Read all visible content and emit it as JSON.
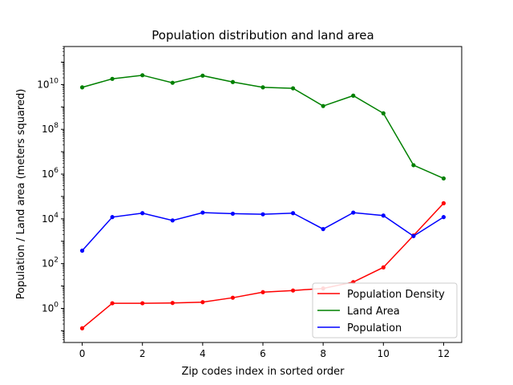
{
  "chart_data": {
    "type": "line",
    "title": "Population distribution and land area",
    "xlabel": "Zip codes index in sorted order",
    "ylabel": "Population / Land area (meters squared)",
    "x": [
      0,
      1,
      2,
      3,
      4,
      5,
      6,
      7,
      8,
      9,
      10,
      11,
      12
    ],
    "xlim": [
      -0.6,
      12.6
    ],
    "xticks": [
      0,
      2,
      4,
      6,
      8,
      10,
      12
    ],
    "yscale": "log",
    "ylim": [
      0.03,
      500000000000
    ],
    "yticks": [
      {
        "value": 1,
        "base": "10",
        "exp": "0"
      },
      {
        "value": 100,
        "base": "10",
        "exp": "2"
      },
      {
        "value": 10000,
        "base": "10",
        "exp": "4"
      },
      {
        "value": 1000000,
        "base": "10",
        "exp": "6"
      },
      {
        "value": 100000000,
        "base": "10",
        "exp": "8"
      },
      {
        "value": 10000000000,
        "base": "10",
        "exp": "10"
      }
    ],
    "grid": false,
    "legend_position": "lower-right",
    "series": [
      {
        "name": "Population Density",
        "color": "#ff0000",
        "values": [
          0.13,
          1.7,
          1.7,
          1.75,
          1.9,
          3.0,
          5.3,
          6.3,
          7.8,
          15,
          68,
          1800,
          50000
        ]
      },
      {
        "name": "Land Area",
        "color": "#008000",
        "values": [
          7500000000,
          18000000000,
          26000000000,
          12000000000,
          25000000000,
          13000000000,
          7500000000,
          6800000000,
          1100000000,
          3200000000,
          520000000,
          2500000,
          640000
        ]
      },
      {
        "name": "Population",
        "color": "#0000ff",
        "values": [
          380,
          12000,
          18000,
          8500,
          19000,
          17000,
          16000,
          18000,
          3500,
          19000,
          14000,
          1700,
          12000
        ]
      }
    ]
  }
}
